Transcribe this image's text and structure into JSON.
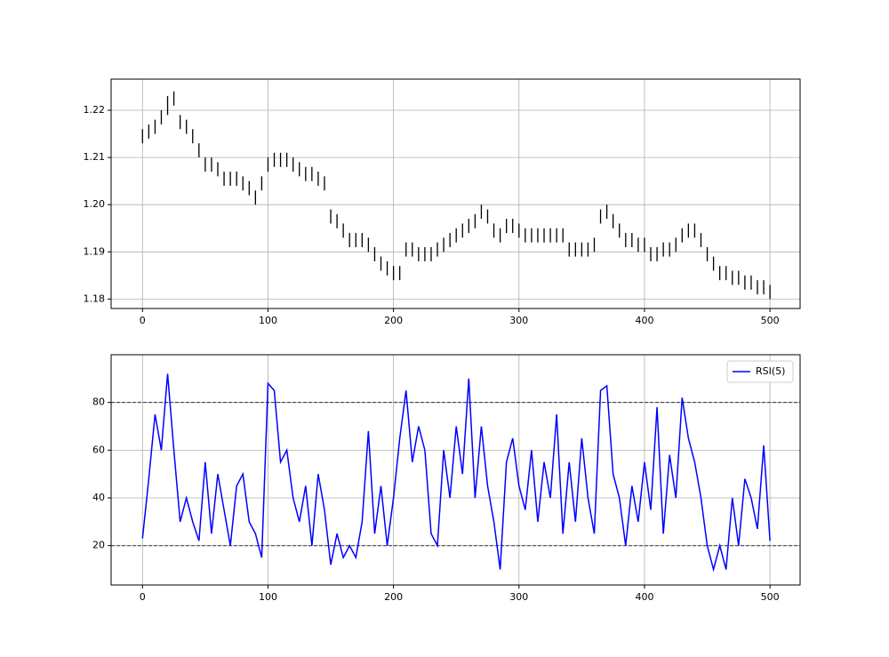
{
  "chart_data": [
    {
      "type": "ohlc",
      "color": "#000000",
      "grid": true,
      "xlim": [
        -25,
        524
      ],
      "xticks": [
        0,
        100,
        200,
        300,
        400,
        500
      ],
      "ylim": [
        1.178,
        1.2266
      ],
      "yticks": [
        1.18,
        1.19,
        {
          "value": 1.2,
          "label": "1.20"
        },
        1.21,
        1.22
      ],
      "x": [
        0,
        5,
        10,
        15,
        20,
        25,
        30,
        35,
        40,
        45,
        50,
        55,
        60,
        65,
        70,
        75,
        80,
        85,
        90,
        95,
        100,
        105,
        110,
        115,
        120,
        125,
        130,
        135,
        140,
        145,
        150,
        155,
        160,
        165,
        170,
        175,
        180,
        185,
        190,
        195,
        200,
        205,
        210,
        215,
        220,
        225,
        230,
        235,
        240,
        245,
        250,
        255,
        260,
        265,
        270,
        275,
        280,
        285,
        290,
        295,
        300,
        305,
        310,
        315,
        320,
        325,
        330,
        335,
        340,
        345,
        350,
        355,
        360,
        365,
        370,
        375,
        380,
        385,
        390,
        395,
        400,
        405,
        410,
        415,
        420,
        425,
        430,
        435,
        440,
        445,
        450,
        455,
        460,
        465,
        470,
        475,
        480,
        485,
        490,
        495,
        500
      ],
      "low": [
        1.213,
        1.214,
        1.215,
        1.217,
        1.219,
        1.221,
        1.216,
        1.215,
        1.213,
        1.21,
        1.207,
        1.207,
        1.206,
        1.204,
        1.204,
        1.204,
        1.203,
        1.202,
        1.2,
        1.203,
        1.207,
        1.208,
        1.208,
        1.208,
        1.207,
        1.206,
        1.205,
        1.205,
        1.204,
        1.203,
        1.196,
        1.195,
        1.193,
        1.191,
        1.191,
        1.191,
        1.19,
        1.188,
        1.186,
        1.185,
        1.184,
        1.184,
        1.189,
        1.189,
        1.188,
        1.188,
        1.188,
        1.189,
        1.19,
        1.191,
        1.192,
        1.193,
        1.194,
        1.195,
        1.197,
        1.196,
        1.193,
        1.192,
        1.194,
        1.194,
        1.193,
        1.192,
        1.192,
        1.192,
        1.192,
        1.192,
        1.192,
        1.192,
        1.189,
        1.189,
        1.189,
        1.189,
        1.19,
        1.196,
        1.197,
        1.195,
        1.193,
        1.191,
        1.191,
        1.19,
        1.19,
        1.188,
        1.188,
        1.189,
        1.189,
        1.19,
        1.192,
        1.193,
        1.193,
        1.191,
        1.188,
        1.186,
        1.184,
        1.184,
        1.183,
        1.183,
        1.182,
        1.182,
        1.181,
        1.181,
        1.18
      ],
      "high": [
        1.216,
        1.217,
        1.218,
        1.22,
        1.223,
        1.224,
        1.219,
        1.218,
        1.216,
        1.213,
        1.21,
        1.21,
        1.209,
        1.207,
        1.207,
        1.207,
        1.206,
        1.205,
        1.203,
        1.206,
        1.21,
        1.211,
        1.211,
        1.211,
        1.21,
        1.209,
        1.208,
        1.208,
        1.207,
        1.206,
        1.199,
        1.198,
        1.196,
        1.194,
        1.194,
        1.194,
        1.193,
        1.191,
        1.189,
        1.188,
        1.187,
        1.187,
        1.192,
        1.192,
        1.191,
        1.191,
        1.191,
        1.192,
        1.193,
        1.194,
        1.195,
        1.196,
        1.197,
        1.198,
        1.2,
        1.199,
        1.196,
        1.195,
        1.197,
        1.197,
        1.196,
        1.195,
        1.195,
        1.195,
        1.195,
        1.195,
        1.195,
        1.195,
        1.192,
        1.192,
        1.192,
        1.192,
        1.193,
        1.199,
        1.2,
        1.198,
        1.196,
        1.194,
        1.194,
        1.193,
        1.193,
        1.191,
        1.191,
        1.192,
        1.192,
        1.193,
        1.195,
        1.196,
        1.196,
        1.194,
        1.191,
        1.189,
        1.187,
        1.187,
        1.186,
        1.186,
        1.185,
        1.185,
        1.184,
        1.184,
        1.183
      ]
    },
    {
      "type": "line",
      "grid": true,
      "legend": "upper right",
      "xlim": [
        -25,
        524
      ],
      "xticks": [
        0,
        100,
        200,
        300,
        400,
        500
      ],
      "ylim": [
        3.5,
        100
      ],
      "yticks": [
        20,
        40,
        60,
        80
      ],
      "hlines": [
        20,
        80
      ],
      "hline_color": "#333333",
      "x": [
        0,
        5,
        10,
        15,
        20,
        25,
        30,
        35,
        40,
        45,
        50,
        55,
        60,
        65,
        70,
        75,
        80,
        85,
        90,
        95,
        100,
        105,
        110,
        115,
        120,
        125,
        130,
        135,
        140,
        145,
        150,
        155,
        160,
        165,
        170,
        175,
        180,
        185,
        190,
        195,
        200,
        205,
        210,
        215,
        220,
        225,
        230,
        235,
        240,
        245,
        250,
        255,
        260,
        265,
        270,
        275,
        280,
        285,
        290,
        295,
        300,
        305,
        310,
        315,
        320,
        325,
        330,
        335,
        340,
        345,
        350,
        355,
        360,
        365,
        370,
        375,
        380,
        385,
        390,
        395,
        400,
        405,
        410,
        415,
        420,
        425,
        430,
        435,
        440,
        445,
        450,
        455,
        460,
        465,
        470,
        475,
        480,
        485,
        490,
        495,
        500
      ],
      "series": [
        {
          "name": "RSI(5)",
          "color": "#0000ff",
          "values": [
            23,
            48,
            75,
            60,
            92,
            60,
            30,
            40,
            30,
            22,
            55,
            25,
            50,
            35,
            20,
            45,
            50,
            30,
            25,
            15,
            88,
            85,
            55,
            60,
            40,
            30,
            45,
            20,
            50,
            35,
            12,
            25,
            15,
            20,
            15,
            30,
            68,
            25,
            45,
            20,
            40,
            65,
            85,
            55,
            70,
            60,
            25,
            20,
            60,
            40,
            70,
            50,
            90,
            40,
            70,
            45,
            30,
            10,
            55,
            65,
            45,
            35,
            60,
            30,
            55,
            40,
            75,
            25,
            55,
            30,
            65,
            40,
            25,
            85,
            87,
            50,
            40,
            20,
            45,
            30,
            55,
            35,
            78,
            25,
            58,
            40,
            82,
            65,
            55,
            40,
            20,
            10,
            20,
            10,
            40,
            20,
            48,
            40,
            27,
            62,
            22
          ]
        }
      ]
    }
  ]
}
